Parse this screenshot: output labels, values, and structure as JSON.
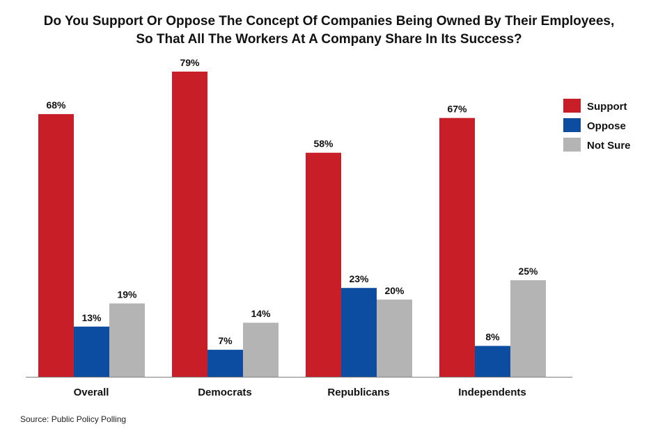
{
  "chart_data": {
    "type": "bar",
    "title_lines": [
      "Do You Support Or Oppose The Concept Of Companies Being Owned By  Their Employees,",
      "So That All The Workers At A Company Share In Its Success?"
    ],
    "categories": [
      "Overall",
      "Democrats",
      "Republicans",
      "Independents"
    ],
    "series": [
      {
        "name": "Support",
        "color": "#c81e28",
        "values": [
          68,
          79,
          58,
          67
        ],
        "labels": [
          "68%",
          "79%",
          "58%",
          "67%"
        ]
      },
      {
        "name": "Oppose",
        "color": "#0c4da2",
        "values": [
          13,
          7,
          23,
          8
        ],
        "labels": [
          "13%",
          "7%",
          "23%",
          "8%"
        ]
      },
      {
        "name": "Not Sure",
        "color": "#b4b4b4",
        "values": [
          19,
          14,
          20,
          25
        ],
        "labels": [
          "19%",
          "14%",
          "20%",
          "25%"
        ]
      }
    ],
    "unit": "%",
    "ylim": [
      0,
      79
    ],
    "grid": false,
    "legend_position": "top-right",
    "source": "Source: Public Policy Polling"
  }
}
